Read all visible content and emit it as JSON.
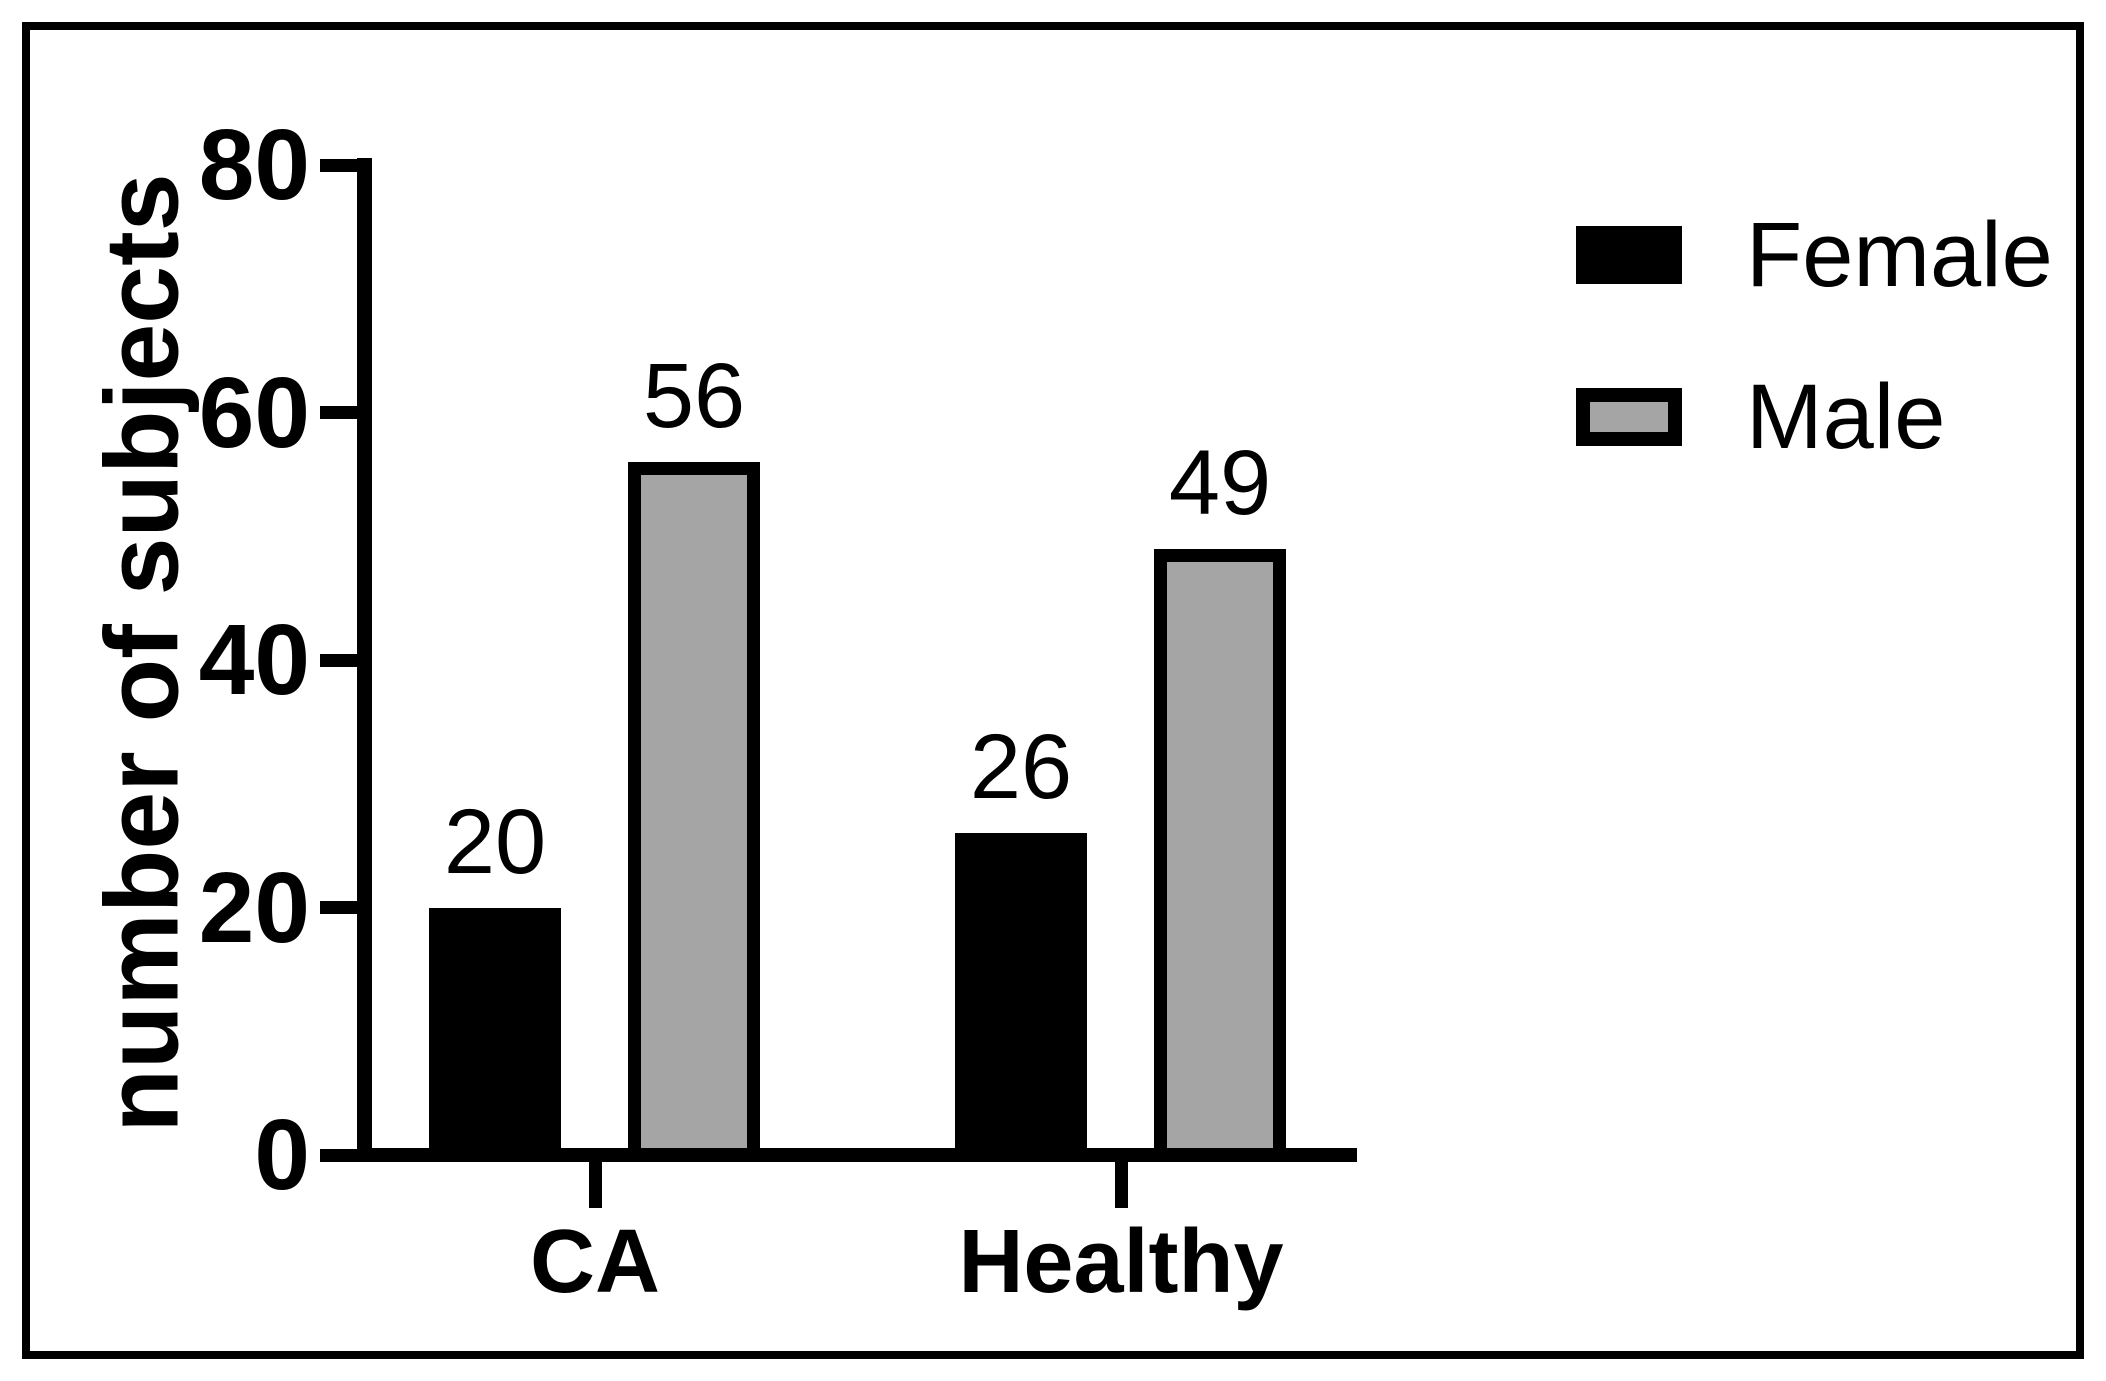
{
  "figure": {
    "background": "#ffffff",
    "frame_color": "#000000",
    "text_color": "#000000"
  },
  "chart_data": {
    "type": "bar",
    "title": "",
    "ylabel": "number of subjects",
    "xlabel": "",
    "categories": [
      "CA",
      "Healthy"
    ],
    "series": [
      {
        "name": "Female",
        "values": [
          20,
          26
        ],
        "fill": "#000000",
        "border_color": "#000000",
        "border_width": 0
      },
      {
        "name": "Male",
        "values": [
          56,
          49
        ],
        "fill": "#A5A5A5",
        "border_color": "#000000",
        "border_width": 13
      }
    ],
    "yticks": [
      "0",
      "20",
      "40",
      "60",
      "80"
    ],
    "ylim": [
      0,
      80
    ],
    "grid": false,
    "data_labels_shown": true,
    "data_labels": [
      [
        "20",
        "26"
      ],
      [
        "56",
        "49"
      ]
    ],
    "legend_position": "top-right",
    "legend_items": [
      "Female",
      "Male"
    ]
  }
}
